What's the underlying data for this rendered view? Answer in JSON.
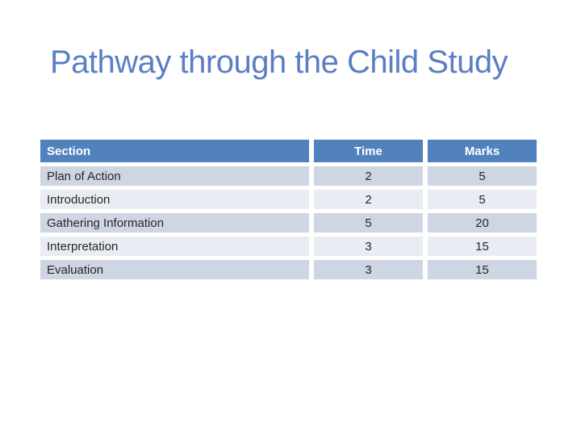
{
  "slide": {
    "title": "Pathway through the Child Study"
  },
  "colors": {
    "title_text": "#5b7ec4",
    "table_header_bg": "#5182bd",
    "table_header_text": "#ffffff",
    "row_band_dark": "#ced5e3",
    "row_band_light": "#e9ecf3",
    "body_text": "#262626"
  },
  "table": {
    "headers": {
      "section": "Section",
      "time": "Time",
      "marks": "Marks"
    },
    "rows": [
      {
        "section": "Plan of Action",
        "time": "2",
        "marks": "5"
      },
      {
        "section": "Introduction",
        "time": "2",
        "marks": "5"
      },
      {
        "section": "Gathering Information",
        "time": "5",
        "marks": "20"
      },
      {
        "section": "Interpretation",
        "time": "3",
        "marks": "15"
      },
      {
        "section": "Evaluation",
        "time": "3",
        "marks": "15"
      }
    ]
  }
}
